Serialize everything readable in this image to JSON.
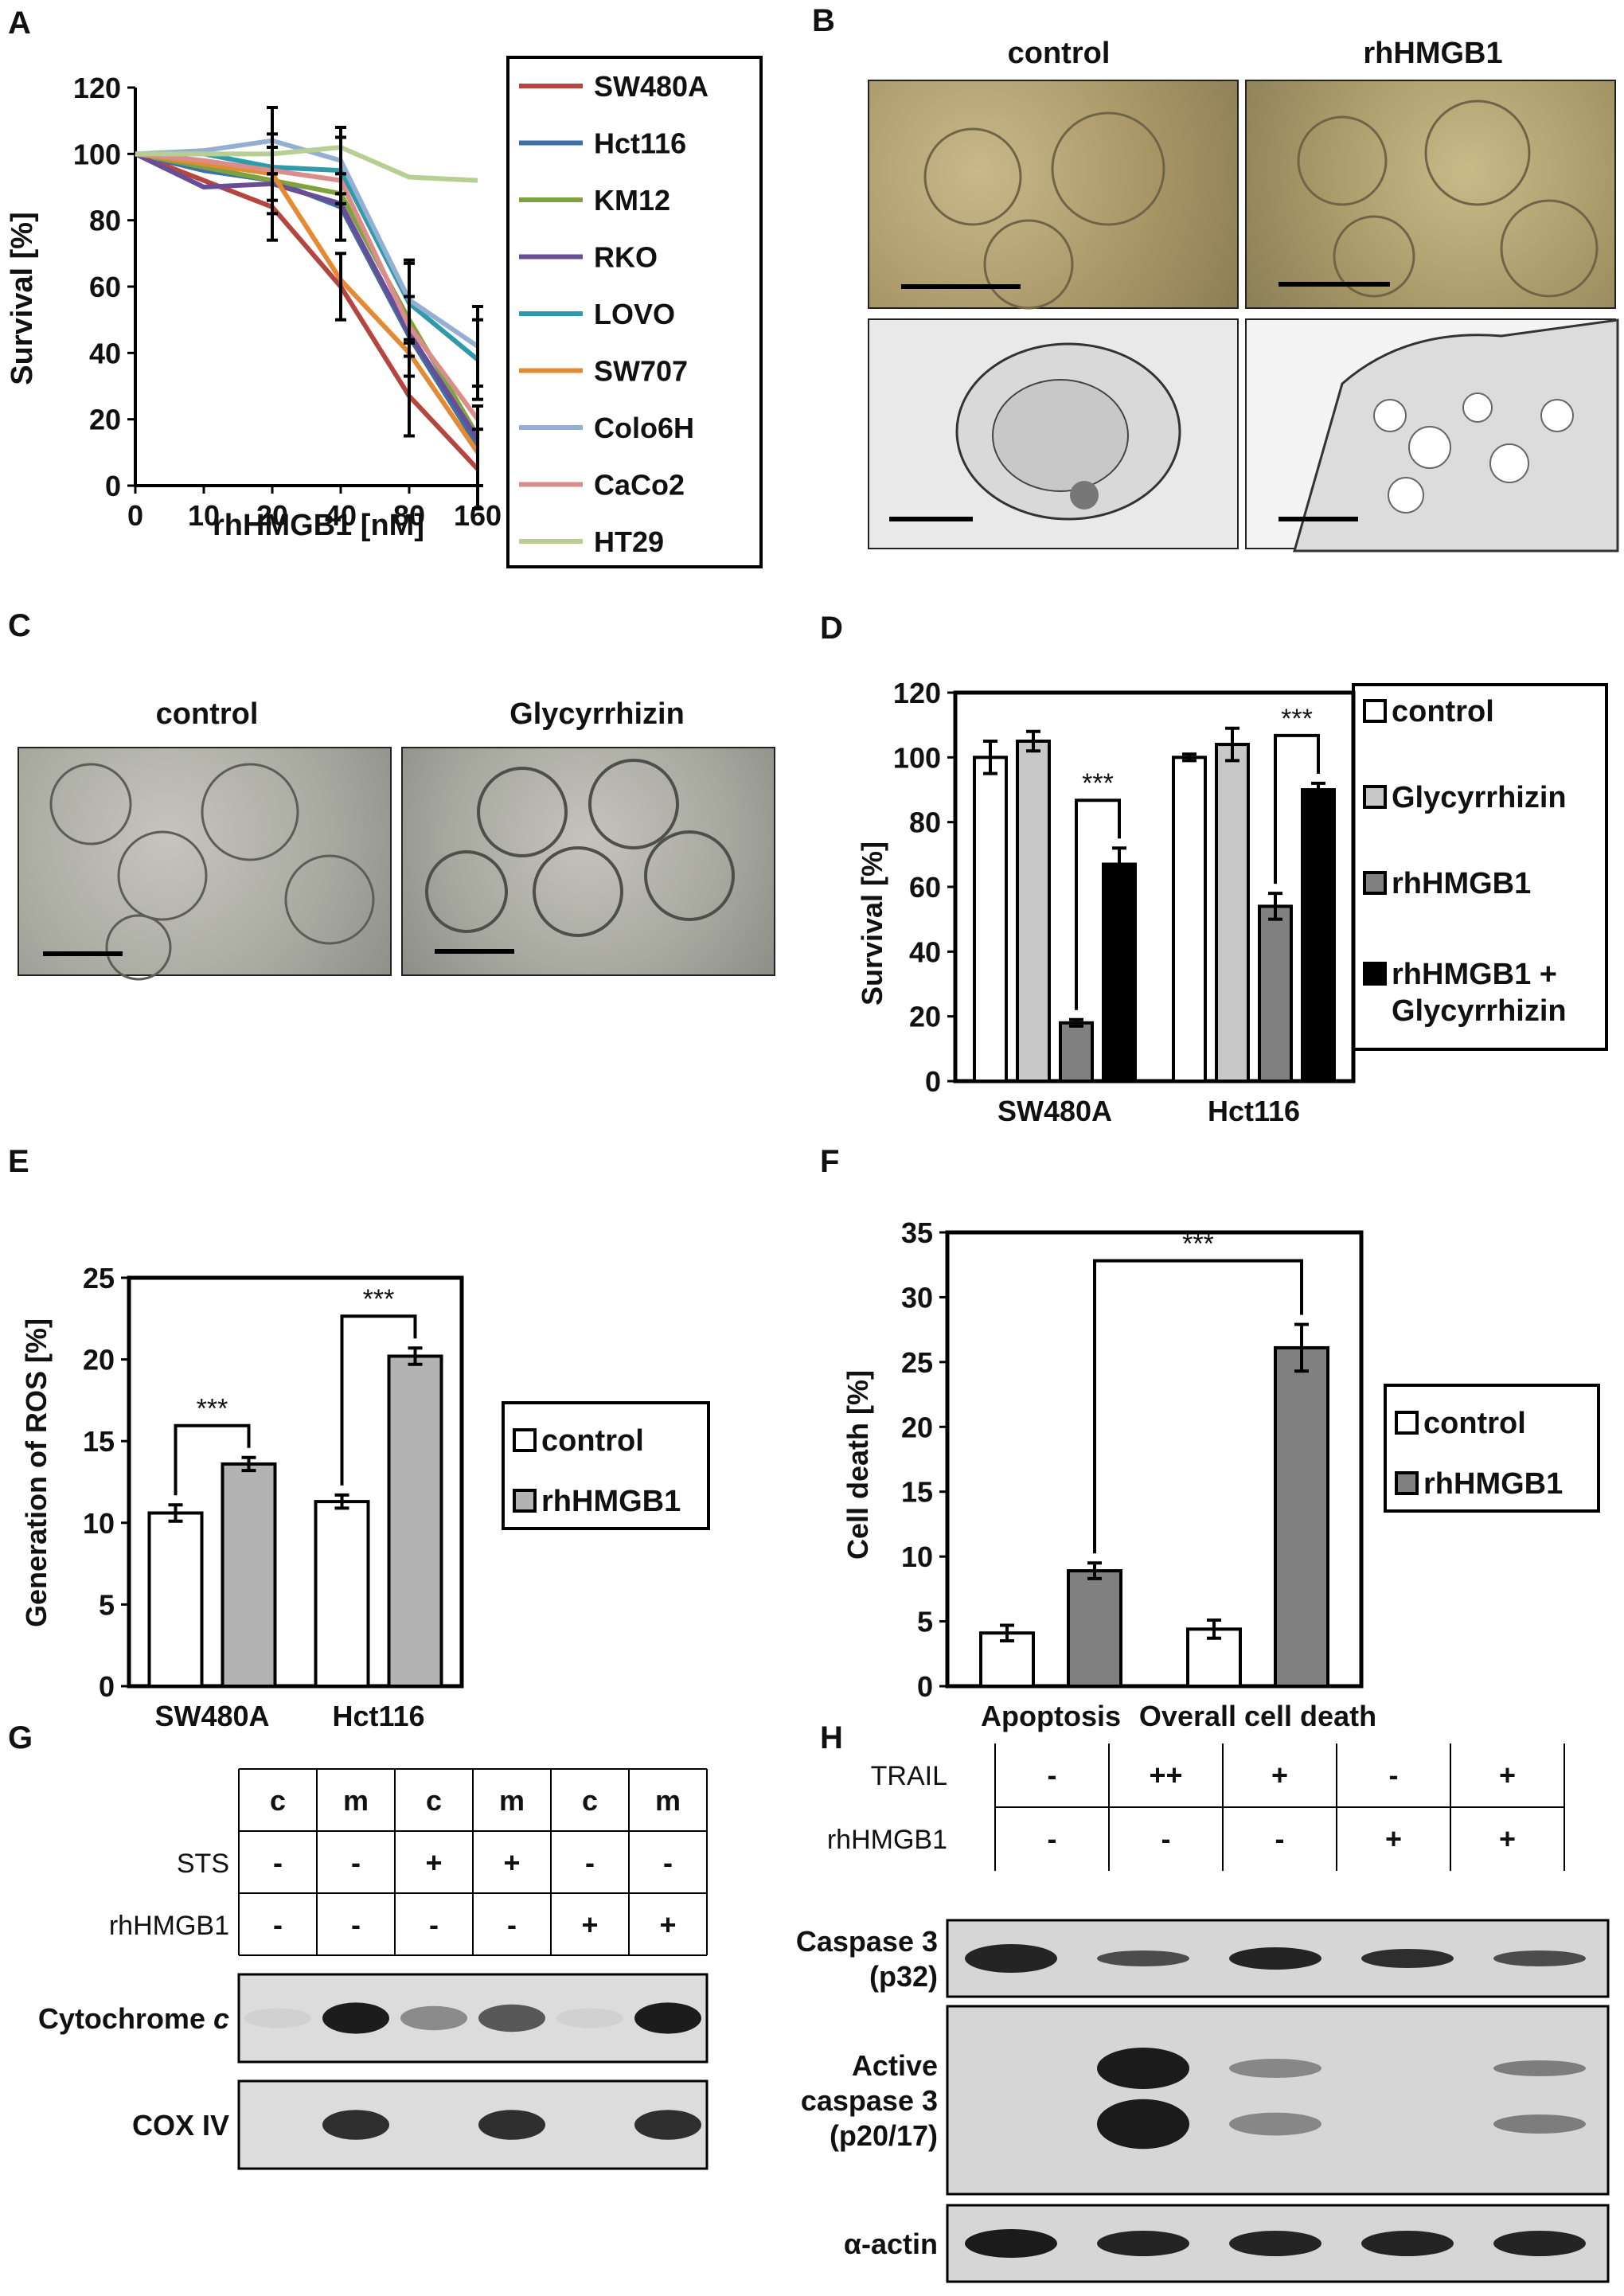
{
  "panel_labels": {
    "A": "A",
    "B": "B",
    "C": "C",
    "D": "D",
    "E": "E",
    "F": "F",
    "G": "G",
    "H": "H"
  },
  "chart_data": [
    {
      "id": "A",
      "type": "line",
      "xlabel": "rhHMGB1 [nM]",
      "ylabel": "Survival [%]",
      "categories": [
        "0",
        "10",
        "20",
        "40",
        "80",
        "160"
      ],
      "ylim": [
        0,
        120
      ],
      "yticks": [
        0,
        20,
        40,
        60,
        80,
        100,
        120
      ],
      "legend": "right",
      "series": [
        {
          "name": "SW480A",
          "color": "#b5453f",
          "values": [
            100,
            92,
            84,
            60,
            27,
            5
          ]
        },
        {
          "name": "Hct116",
          "color": "#3d6fa8",
          "values": [
            100,
            95,
            92,
            84,
            45,
            12
          ]
        },
        {
          "name": "KM12",
          "color": "#7fa23e",
          "values": [
            100,
            96,
            92,
            88,
            50,
            15
          ]
        },
        {
          "name": "RKO",
          "color": "#6a4e95",
          "values": [
            100,
            90,
            91,
            85,
            46,
            14
          ]
        },
        {
          "name": "LOVO",
          "color": "#2f9aaa",
          "values": [
            100,
            100,
            96,
            95,
            55,
            38
          ]
        },
        {
          "name": "SW707",
          "color": "#e48a35",
          "values": [
            100,
            97,
            94,
            62,
            40,
            10
          ]
        },
        {
          "name": "Colo6H",
          "color": "#95afd3",
          "values": [
            100,
            101,
            104,
            98,
            56,
            42
          ]
        },
        {
          "name": "CaCo2",
          "color": "#d98e8b",
          "values": [
            100,
            98,
            95,
            92,
            48,
            20
          ]
        },
        {
          "name": "HT29",
          "color": "#b7cf93",
          "values": [
            100,
            100,
            100,
            102,
            93,
            92
          ]
        }
      ],
      "error_bars": {
        "20": 10,
        "40": 10,
        "80": 12,
        "160": 12
      }
    },
    {
      "id": "D",
      "type": "bar",
      "ylabel": "Survival [%]",
      "categories": [
        "SW480A",
        "Hct116"
      ],
      "ylim": [
        0,
        120
      ],
      "yticks": [
        0,
        20,
        40,
        60,
        80,
        100,
        120
      ],
      "legend": "right",
      "series": [
        {
          "name": "control",
          "color": "#ffffff",
          "values": [
            100,
            100
          ],
          "errors": [
            5,
            1
          ]
        },
        {
          "name": "Glycyrrhizin",
          "color": "#c8c8c8",
          "values": [
            105,
            104
          ],
          "errors": [
            3,
            5
          ]
        },
        {
          "name": "rhHMGB1",
          "color": "#808080",
          "values": [
            18,
            54
          ],
          "errors": [
            1,
            4
          ]
        },
        {
          "name": "rhHMGB1 + Glycyrrhizin",
          "color": "#000000",
          "values": [
            67,
            90
          ],
          "errors": [
            5,
            2
          ]
        }
      ],
      "significance": [
        {
          "category": "SW480A",
          "label": "***"
        },
        {
          "category": "Hct116",
          "label": "***"
        }
      ]
    },
    {
      "id": "E",
      "type": "bar",
      "ylabel": "Generation of ROS [%]",
      "categories": [
        "SW480A",
        "Hct116"
      ],
      "ylim": [
        0,
        25
      ],
      "yticks": [
        0,
        5,
        10,
        15,
        20,
        25
      ],
      "legend": "right",
      "series": [
        {
          "name": "control",
          "color": "#ffffff",
          "values": [
            10.6,
            11.3
          ],
          "errors": [
            0.5,
            0.4
          ]
        },
        {
          "name": "rhHMGB1",
          "color": "#b3b3b3",
          "values": [
            13.6,
            20.2
          ],
          "errors": [
            0.4,
            0.5
          ]
        }
      ],
      "significance": [
        {
          "category": "SW480A",
          "label": "***"
        },
        {
          "category": "Hct116",
          "label": "***"
        }
      ]
    },
    {
      "id": "F",
      "type": "bar",
      "ylabel": "Cell death [%]",
      "categories": [
        "Apoptosis",
        "Overall cell death"
      ],
      "ylim": [
        0,
        35
      ],
      "yticks": [
        0,
        5,
        10,
        15,
        20,
        25,
        30,
        35
      ],
      "legend": "right",
      "series": [
        {
          "name": "control",
          "color": "#ffffff",
          "values": [
            4.1,
            4.4
          ],
          "errors": [
            0.6,
            0.7
          ]
        },
        {
          "name": "rhHMGB1",
          "color": "#808080",
          "values": [
            8.9,
            26.1
          ],
          "errors": [
            0.6,
            1.8
          ]
        }
      ],
      "significance": [
        {
          "from": "Apoptosis",
          "to": "Overall cell death",
          "label": "***"
        }
      ]
    }
  ],
  "panel_b": {
    "col1": "control",
    "col2": "rhHMGB1"
  },
  "panel_c": {
    "col1": "control",
    "col2": "Glycyrrhizin"
  },
  "panel_g": {
    "header": [
      "c",
      "m",
      "c",
      "m",
      "c",
      "m"
    ],
    "rows": [
      {
        "label": "STS",
        "values": [
          "-",
          "-",
          "+",
          "+",
          "-",
          "-"
        ]
      },
      {
        "label": "rhHMGB1",
        "values": [
          "-",
          "-",
          "-",
          "-",
          "+",
          "+"
        ]
      }
    ],
    "blots": [
      {
        "label": "Cytochrome",
        "label_italic": "c",
        "bands": [
          0.05,
          0.95,
          0.4,
          0.65,
          0.05,
          0.95
        ]
      },
      {
        "label": "COX IV",
        "label_italic": "",
        "bands": [
          0,
          0.85,
          0,
          0.85,
          0,
          0.85
        ]
      }
    ]
  },
  "panel_h": {
    "rows": [
      {
        "label": "TRAIL",
        "values": [
          "-",
          "++",
          "+",
          "-",
          "+"
        ]
      },
      {
        "label": "rhHMGB1",
        "values": [
          "-",
          "-",
          "-",
          "+",
          "+"
        ]
      }
    ],
    "blots": [
      {
        "label_line1": "Caspase 3",
        "label_line2": "(p32)",
        "label_line3": ""
      },
      {
        "label_line1": "Active",
        "label_line2": "caspase 3",
        "label_line3": "(p20/17)"
      },
      {
        "label_line1": "α-actin",
        "label_line2": "",
        "label_line3": ""
      }
    ]
  }
}
